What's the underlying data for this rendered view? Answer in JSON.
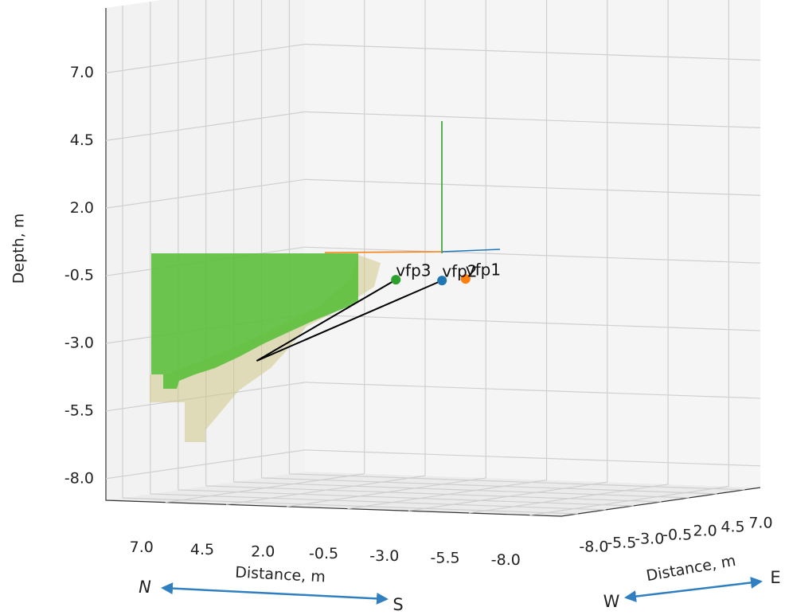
{
  "chart_data": {
    "type": "scatter3d",
    "xlabel": "Distance, m",
    "ylabel": "Distance, m",
    "zlabel": "Depth, m",
    "xlim": [
      -9.3,
      9.45
    ],
    "ylim": [
      -9.5,
      8.4
    ],
    "zlim": [
      -8.8,
      9.4
    ],
    "xticks": [
      {
        "value": 7,
        "label": "7.0"
      },
      {
        "value": 4.5,
        "label": "4.5"
      },
      {
        "value": 2,
        "label": "2.0"
      },
      {
        "value": -0.5,
        "label": "-0.5"
      },
      {
        "value": -3,
        "label": "-3.0"
      },
      {
        "value": -5.5,
        "label": "-5.5"
      },
      {
        "value": -8,
        "label": "-8.0"
      }
    ],
    "yticks": [
      {
        "value": -8,
        "label": "-8.0"
      },
      {
        "value": -5.5,
        "label": "-5.5"
      },
      {
        "value": -3,
        "label": "-3.0"
      },
      {
        "value": -0.5,
        "label": "-0.5"
      },
      {
        "value": 2,
        "label": "2.0"
      },
      {
        "value": 4.5,
        "label": "4.5"
      },
      {
        "value": 7,
        "label": "7.0"
      }
    ],
    "zticks": [
      {
        "value": 7,
        "label": "7.0"
      },
      {
        "value": 4.5,
        "label": "4.5"
      },
      {
        "value": 2,
        "label": "2.0"
      },
      {
        "value": -0.5,
        "label": "-0.5"
      },
      {
        "value": -3,
        "label": "-3.0"
      },
      {
        "value": -5.5,
        "label": "-5.5"
      },
      {
        "value": -8,
        "label": "-8.0"
      }
    ],
    "grid": true,
    "series": [
      {
        "name": "vfp1",
        "color": "#ff7f0e",
        "x": [
          -1.01
        ],
        "y": [
          0
        ],
        "z": [
          -0.85
        ]
      },
      {
        "name": "vfp2",
        "color": "#1f77b4",
        "x": [
          -0.04
        ],
        "y": [
          0
        ],
        "z": [
          -0.94
        ]
      },
      {
        "name": "vfp3",
        "color": "#2ca02c",
        "x": [
          1.86
        ],
        "y": [
          0
        ],
        "z": [
          -0.97
        ]
      }
    ],
    "lines": [
      {
        "color": "#000000",
        "x": [
          1.86,
          7.59
        ],
        "y": [
          0,
          0
        ],
        "z": [
          -0.97,
          -4.15
        ]
      },
      {
        "color": "#000000",
        "x": [
          -0.04,
          7.59
        ],
        "y": [
          0,
          0
        ],
        "z": [
          -0.94,
          -4.15
        ]
      }
    ],
    "compass": {
      "x_axis": [
        "N",
        "S"
      ],
      "y_axis": [
        "W",
        "E"
      ]
    }
  }
}
